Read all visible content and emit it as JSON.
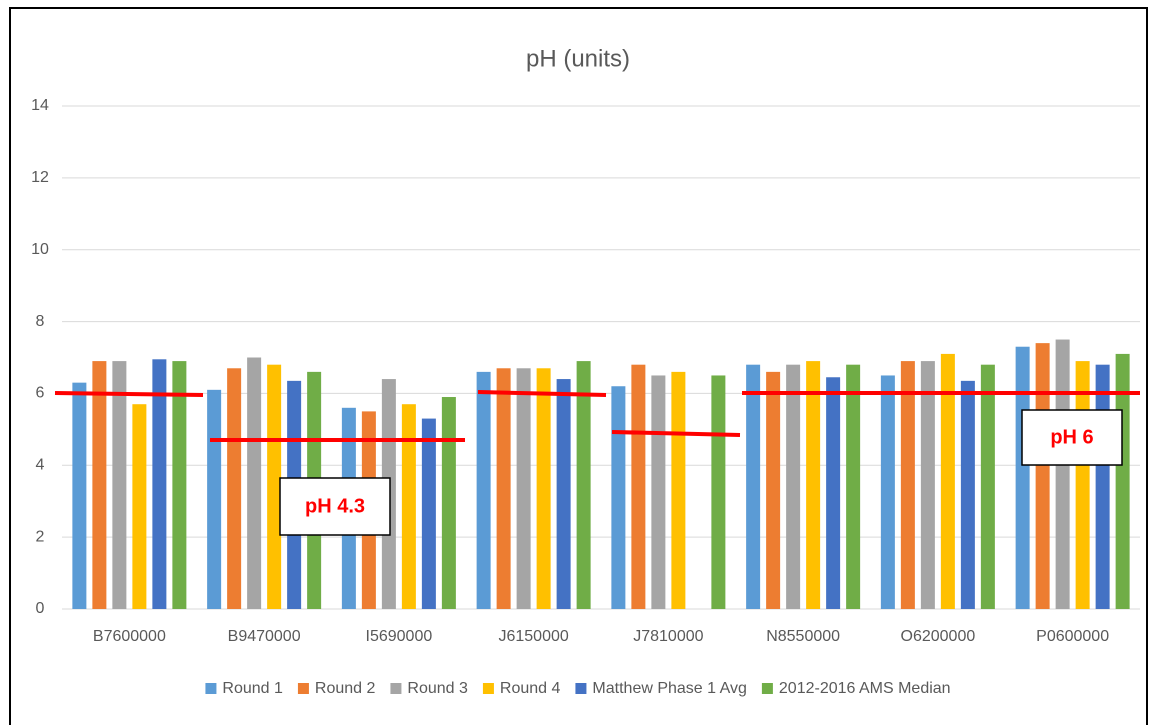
{
  "chart_data": {
    "type": "bar",
    "title": "pH (units)",
    "categories": [
      "B7600000",
      "B9470000",
      "I5690000",
      "J6150000",
      "J7810000",
      "N8550000",
      "O6200000",
      "P0600000"
    ],
    "series": [
      {
        "name": "Round 1",
        "color": "#5b9bd5",
        "values": [
          6.3,
          6.1,
          5.6,
          6.6,
          6.2,
          6.8,
          6.5,
          7.3
        ]
      },
      {
        "name": "Round 2",
        "color": "#ed7d31",
        "values": [
          6.9,
          6.7,
          5.5,
          6.7,
          6.8,
          6.6,
          6.9,
          7.4
        ]
      },
      {
        "name": "Round 3",
        "color": "#a5a5a5",
        "values": [
          6.9,
          7.0,
          6.4,
          6.7,
          6.5,
          6.8,
          6.9,
          7.5
        ]
      },
      {
        "name": "Round 4",
        "color": "#ffc000",
        "values": [
          5.7,
          6.8,
          5.7,
          6.7,
          6.6,
          6.9,
          7.1,
          6.9
        ]
      },
      {
        "name": "Matthew Phase 1 Avg",
        "color": "#4472c4",
        "values": [
          6.95,
          6.35,
          5.3,
          6.4,
          null,
          6.45,
          6.35,
          6.8
        ]
      },
      {
        "name": "2012-2016 AMS Median",
        "color": "#70ad47",
        "values": [
          6.9,
          6.6,
          5.9,
          6.9,
          6.5,
          6.8,
          6.8,
          7.1
        ]
      }
    ],
    "ylim": [
      0,
      14
    ],
    "yticks": [
      0,
      2,
      4,
      6,
      8,
      10,
      12,
      14
    ],
    "grid": true,
    "legend": "bottom",
    "annotations": [
      "pH 4.3",
      "pH 6"
    ]
  }
}
